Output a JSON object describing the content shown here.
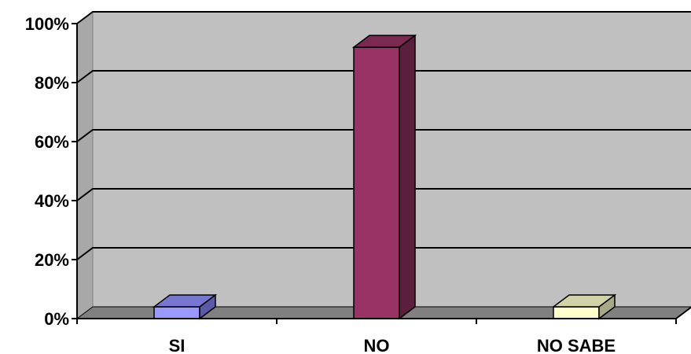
{
  "chart_data": {
    "type": "bar",
    "style": "3d-column",
    "categories": [
      "SI",
      "NO",
      "NO SABE"
    ],
    "values": [
      4,
      92,
      4
    ],
    "y_ticks": [
      "0%",
      "20%",
      "40%",
      "60%",
      "80%",
      "100%"
    ],
    "ylim": [
      0,
      100
    ],
    "grid": true,
    "legend": "none",
    "colors": {
      "bars": [
        "#9999ff",
        "#993366",
        "#ffffcc"
      ],
      "bar_sides": [
        "#5a5aa8",
        "#5a1f3c",
        "#a8a886"
      ],
      "bar_tops": [
        "#7777d2",
        "#7a2950",
        "#d2d2a8"
      ],
      "wall": "#c0c0c0",
      "floor": "#808080",
      "gridline": "#000000"
    }
  }
}
